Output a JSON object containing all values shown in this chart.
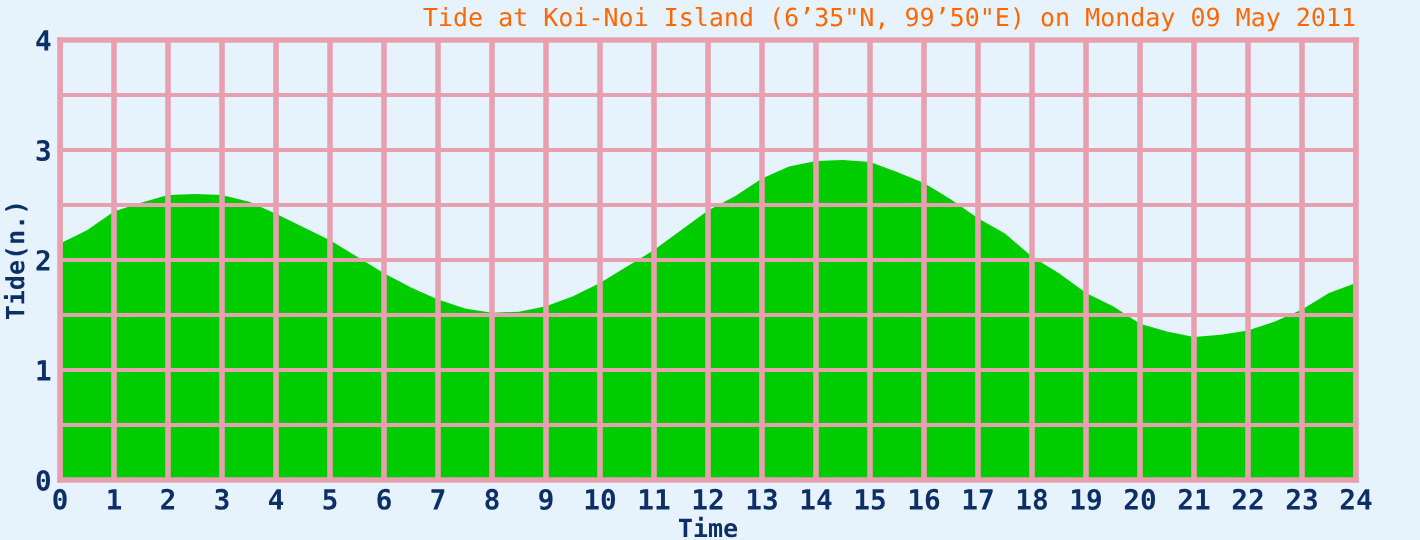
{
  "chart_data": {
    "type": "area",
    "title": "Tide at Koi-Noi Island (6’35\"N, 99’50\"E) on Monday 09 May 2011",
    "xlabel": "Time",
    "ylabel": "Tide(n.)",
    "x": [
      0,
      0.5,
      1,
      1.5,
      2,
      2.5,
      3,
      3.5,
      4,
      4.5,
      5,
      5.5,
      6,
      6.5,
      7,
      7.5,
      8,
      8.5,
      9,
      9.5,
      10,
      10.5,
      11,
      11.5,
      12,
      12.5,
      13,
      13.5,
      14,
      14.5,
      15,
      15.5,
      16,
      16.5,
      17,
      17.5,
      18,
      18.5,
      19,
      19.5,
      20,
      20.5,
      21,
      21.5,
      22,
      22.5,
      23,
      23.5,
      24
    ],
    "series": [
      {
        "color": "#00cc00",
        "values": [
          2.15,
          2.27,
          2.44,
          2.52,
          2.59,
          2.6,
          2.59,
          2.53,
          2.42,
          2.3,
          2.18,
          2.03,
          1.88,
          1.75,
          1.64,
          1.56,
          1.52,
          1.53,
          1.58,
          1.67,
          1.79,
          1.94,
          2.09,
          2.27,
          2.45,
          2.58,
          2.74,
          2.85,
          2.9,
          2.91,
          2.89,
          2.8,
          2.7,
          2.55,
          2.38,
          2.24,
          2.03,
          1.88,
          1.7,
          1.58,
          1.42,
          1.35,
          1.3,
          1.32,
          1.36,
          1.44,
          1.55,
          1.7,
          1.79
        ]
      }
    ],
    "xlim": [
      0,
      24
    ],
    "xticks": [
      0,
      1,
      2,
      3,
      4,
      5,
      6,
      7,
      8,
      9,
      10,
      11,
      12,
      13,
      14,
      15,
      16,
      17,
      18,
      19,
      20,
      21,
      22,
      23,
      24
    ],
    "ylim": [
      0,
      4
    ],
    "yticks": [
      0,
      {
        "value": 0.5,
        "label": null
      },
      1,
      {
        "value": 1.5,
        "label": null
      },
      2,
      {
        "value": 2.5,
        "label": null
      },
      3,
      {
        "value": 3.5,
        "label": null
      },
      4
    ],
    "grid": true
  }
}
